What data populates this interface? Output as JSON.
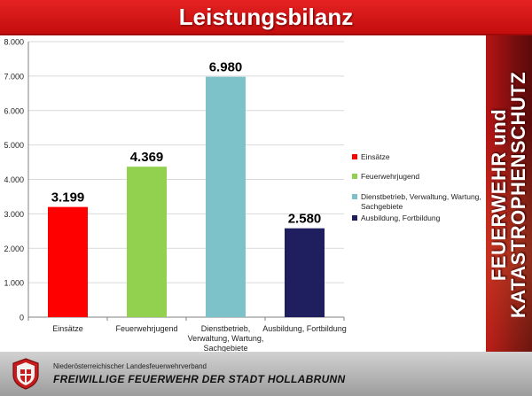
{
  "header": {
    "title": "Leistungsbilanz"
  },
  "side_banner": {
    "line1": "FEUERWEHR und",
    "line2": "KATASTROPHENSCHUTZ"
  },
  "footer": {
    "line1": "Niederösterreichischer Landesfeuerwehrverband",
    "line2": "FREIWILLIGE FEUERWEHR DER STADT HOLLABRUNN"
  },
  "colors": {
    "title_bg": "#d71a1a",
    "bar_einsaetze": "#ff0000",
    "bar_feuerwehrjugend": "#92d050",
    "bar_dienstbetrieb": "#7cc2c8",
    "bar_ausbildung": "#1f1f5f"
  },
  "chart_data": {
    "type": "bar",
    "categories": [
      [
        "Einsätze"
      ],
      [
        "Feuerwehrjugend"
      ],
      [
        "Dienstbetrieb,",
        "Verwaltung, Wartung,",
        "Sachgebiete"
      ],
      [
        "Ausbildung, Fortbildung"
      ]
    ],
    "values": [
      3199,
      4369,
      6980,
      2580
    ],
    "value_labels": [
      "3.199",
      "4.369",
      "6.980",
      "2.580"
    ],
    "series_colors": [
      "#ff0000",
      "#92d050",
      "#7cc2c8",
      "#1f1f5f"
    ],
    "legend": [
      [
        "Einsätze"
      ],
      [
        "Feuerwehrjugend"
      ],
      [
        "Dienstbetrieb, Verwaltung, Wartung,",
        "Sachgebiete"
      ],
      [
        "Ausbildung, Fortbildung"
      ]
    ],
    "legend_position": "right",
    "y_ticks": [
      "0",
      "1.000",
      "2.000",
      "3.000",
      "4.000",
      "5.000",
      "6.000",
      "7.000",
      "8.000"
    ],
    "ylim": [
      0,
      8000
    ],
    "title": "",
    "xlabel": "",
    "ylabel": "",
    "grid": true
  }
}
